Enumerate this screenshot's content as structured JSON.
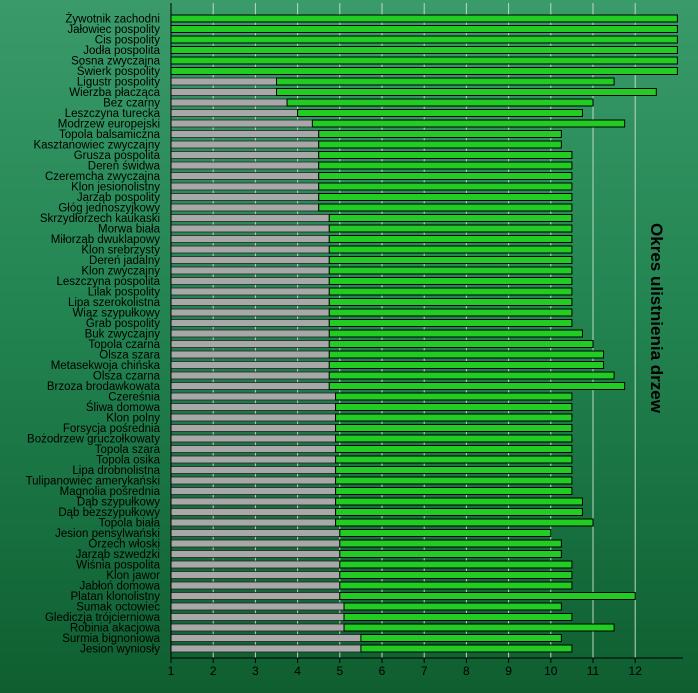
{
  "chart_data": {
    "type": "bar",
    "orientation": "horizontal",
    "style": "floating range bars (start = gray segment end, end = green segment end)",
    "title": "Okres ulistnienia drzew",
    "xlim": [
      1,
      13
    ],
    "xticks": [
      1,
      2,
      3,
      4,
      5,
      6,
      7,
      8,
      9,
      10,
      11,
      12
    ],
    "grid": true,
    "colors": {
      "range": "#22cc22",
      "lead": "#a8a8a8",
      "background": "#2a8c5a"
    },
    "categories": [
      "Żywotnik zachodni",
      "Jałowiec pospolity",
      "Cis pospolity",
      "Jodła pospolita",
      "Sosna zwyczajna",
      "Świerk pospolity",
      "Ligustr pospolity",
      "Wierzba płacząca",
      "Bez czarny",
      "Leszczyna turecka",
      "Modrzew europejski",
      "Topola balsamiczna",
      "Kasztanowiec zwyczajny",
      "Grusza pospolita",
      "Dereń świdwa",
      "Czeremcha zwyczajna",
      "Klon jesionolistny",
      "Jarząb pospolity",
      "Głóg jednoszyjkowy",
      "Skrzydłorzech kaukaski",
      "Morwa biała",
      "Miłorząb dwuklapowy",
      "Klon srebrzysty",
      "Dereń jadalny",
      "Klon zwyczajny",
      "Leszczyna pospolita",
      "Lilak pospolity",
      "Lipa szerokolistna",
      "Wiąz szypułkowy",
      "Grab pospolity",
      "Buk zwyczajny",
      "Topola czarna",
      "Olsza szara",
      "Metasekwoja chińska",
      "Olsza czarna",
      "Brzoza brodawkowata",
      "Czereśnia",
      "Śliwa domowa",
      "Klon polny",
      "Forsycja pośrednia",
      "Bożodrzew gruczołkowaty",
      "Topola szara",
      "Topola osika",
      "Lipa drobnolistna",
      "Tulipanowiec amerykański",
      "Magnolia pośrednia",
      "Dąb szypułkowy",
      "Dąb bezszypułkowy",
      "Topola biała",
      "Jesion pensylwański",
      "Orzech włoski",
      "Jarząb szwedzki",
      "Wiśnia pospolita",
      "Klon jawor",
      "Jabłoń domowa",
      "Platan klonolistny",
      "Sumak octowiec",
      "Glediczja trójcierniowa",
      "Robinia akacjowa",
      "Surmia bignoniowa",
      "Jesion wyniosły"
    ],
    "start": [
      1,
      1,
      1,
      1,
      1,
      1,
      3.5,
      3.5,
      3.75,
      4,
      4.35,
      4.5,
      4.5,
      4.5,
      4.5,
      4.5,
      4.5,
      4.5,
      4.5,
      4.75,
      4.75,
      4.75,
      4.75,
      4.75,
      4.75,
      4.75,
      4.75,
      4.75,
      4.75,
      4.75,
      4.75,
      4.75,
      4.75,
      4.75,
      4.75,
      4.75,
      4.9,
      4.9,
      4.9,
      4.9,
      4.9,
      4.9,
      4.9,
      4.9,
      4.9,
      4.9,
      4.9,
      4.9,
      4.9,
      5,
      5,
      5,
      5,
      5,
      5,
      5,
      5.1,
      5.1,
      5.1,
      5.5,
      5.5
    ],
    "end": [
      13,
      13,
      13,
      13,
      13,
      13,
      11.5,
      12.5,
      11,
      10.75,
      11.75,
      10.25,
      10.25,
      10.5,
      10.5,
      10.5,
      10.5,
      10.5,
      10.5,
      10.5,
      10.5,
      10.5,
      10.5,
      10.5,
      10.5,
      10.5,
      10.5,
      10.5,
      10.5,
      10.5,
      10.75,
      11,
      11.25,
      11.25,
      11.5,
      11.75,
      10.5,
      10.5,
      10.5,
      10.5,
      10.5,
      10.5,
      10.5,
      10.5,
      10.5,
      10.5,
      10.75,
      10.75,
      11,
      10,
      10.25,
      10.25,
      10.5,
      10.5,
      10.5,
      12,
      10.25,
      10.5,
      11.5,
      10.25,
      10.5
    ]
  }
}
